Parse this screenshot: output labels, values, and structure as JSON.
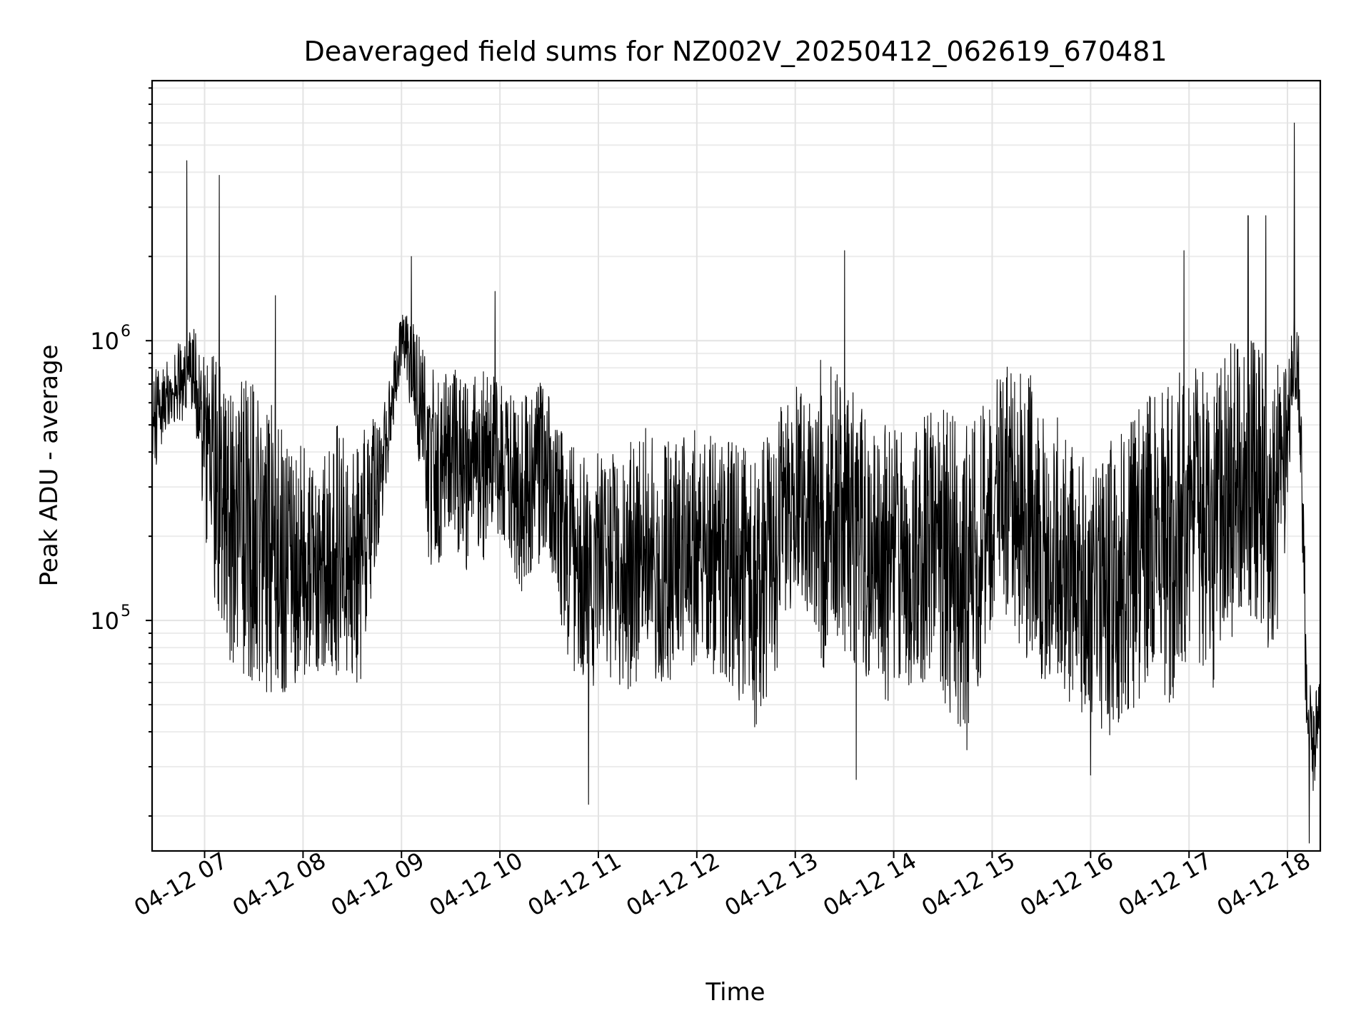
{
  "chart_data": {
    "type": "line",
    "title": "Deaveraged field sums for NZ002V_20250412_062619_670481",
    "xlabel": "Time",
    "ylabel": "Peak ADU - average",
    "x_ticks": [
      "04-12 07",
      "04-12 08",
      "04-12 09",
      "04-12 10",
      "04-12 11",
      "04-12 12",
      "04-12 13",
      "04-12 14",
      "04-12 15",
      "04-12 16",
      "04-12 17",
      "04-12 18"
    ],
    "y_ticks": [
      {
        "label": "10",
        "exp": "5",
        "value": 100000
      },
      {
        "label": "10",
        "exp": "6",
        "value": 1000000
      }
    ],
    "xlim": [
      "2025-04-12 06:28",
      "2025-04-12 18:20"
    ],
    "ylim": [
      15000,
      8500000
    ],
    "y_scale": "log",
    "grid": true,
    "color": "#000000",
    "x_unit": "hour of 2025-04-12",
    "series": [
      {
        "x": [
          6.47,
          6.6,
          6.73,
          6.87,
          7.0,
          7.13,
          7.27,
          7.4,
          7.53,
          7.67,
          7.8,
          7.93,
          8.07,
          8.2,
          8.33,
          8.47,
          8.6,
          8.73,
          8.87,
          9.0,
          9.13,
          9.27,
          9.4,
          9.53,
          9.67,
          9.8,
          9.93,
          10.07,
          10.2,
          10.33,
          10.47,
          10.6,
          10.73,
          10.87,
          11.0,
          11.13,
          11.27,
          11.4,
          11.53,
          11.67,
          11.8,
          11.93,
          12.07,
          12.2,
          12.33,
          12.47,
          12.6,
          12.73,
          12.87,
          13.0,
          13.13,
          13.27,
          13.4,
          13.53,
          13.67,
          13.8,
          13.93,
          14.07,
          14.2,
          14.33,
          14.47,
          14.6,
          14.73,
          14.87,
          15.0,
          15.13,
          15.27,
          15.4,
          15.53,
          15.67,
          15.8,
          15.93,
          16.07,
          16.2,
          16.33,
          16.47,
          16.6,
          16.73,
          16.87,
          17.0,
          17.13,
          17.27,
          17.4,
          17.53,
          17.67,
          17.8,
          17.93,
          18.07,
          18.13,
          18.2,
          18.27,
          18.33
        ],
        "low": [
          300000,
          480000,
          500000,
          560000,
          180000,
          95000,
          70000,
          62000,
          60000,
          52000,
          55000,
          60000,
          62000,
          65000,
          60000,
          58000,
          60000,
          150000,
          330000,
          800000,
          500000,
          150000,
          160000,
          190000,
          140000,
          150000,
          200000,
          180000,
          120000,
          150000,
          160000,
          110000,
          55000,
          60000,
          48000,
          50000,
          55000,
          60000,
          60000,
          55000,
          62000,
          55000,
          65000,
          60000,
          55000,
          45000,
          38000,
          50000,
          75000,
          140000,
          100000,
          60000,
          90000,
          75000,
          65000,
          60000,
          50000,
          55000,
          60000,
          60000,
          55000,
          40000,
          32000,
          60000,
          90000,
          100000,
          80000,
          65000,
          60000,
          60000,
          50000,
          45000,
          40000,
          38000,
          45000,
          50000,
          55000,
          50000,
          50000,
          75000,
          60000,
          45000,
          70000,
          85000,
          100000,
          75000,
          100000,
          650000,
          350000,
          25000,
          22000,
          40000
        ],
        "high": [
          800000,
          820000,
          1000000,
          1200000,
          950000,
          880000,
          750000,
          800000,
          700000,
          600000,
          500000,
          450000,
          400000,
          420000,
          500000,
          480000,
          480000,
          550000,
          700000,
          1300000,
          1200000,
          900000,
          750000,
          800000,
          700000,
          800000,
          750000,
          700000,
          650000,
          700000,
          720000,
          500000,
          450000,
          420000,
          400000,
          400000,
          420000,
          480000,
          500000,
          480000,
          450000,
          480000,
          480000,
          450000,
          450000,
          420000,
          400000,
          480000,
          650000,
          700000,
          600000,
          900000,
          800000,
          700000,
          650000,
          600000,
          550000,
          480000,
          500000,
          550000,
          600000,
          550000,
          500000,
          550000,
          700000,
          850000,
          800000,
          750000,
          650000,
          550000,
          450000,
          400000,
          380000,
          450000,
          500000,
          600000,
          700000,
          650000,
          750000,
          850000,
          800000,
          750000,
          1000000,
          1100000,
          1000000,
          900000,
          800000,
          1250000,
          1100000,
          80000,
          55000,
          60000
        ]
      }
    ],
    "spikes": [
      {
        "x": 6.82,
        "value": 4400000
      },
      {
        "x": 7.15,
        "value": 3900000
      },
      {
        "x": 7.72,
        "value": 1450000
      },
      {
        "x": 9.1,
        "value": 2000000
      },
      {
        "x": 9.95,
        "value": 1500000
      },
      {
        "x": 13.5,
        "value": 2100000
      },
      {
        "x": 16.95,
        "value": 2100000
      },
      {
        "x": 17.6,
        "value": 2800000
      },
      {
        "x": 17.78,
        "value": 2800000
      },
      {
        "x": 18.07,
        "value": 6000000
      },
      {
        "x": 10.9,
        "value": 22000
      },
      {
        "x": 13.62,
        "value": 27000
      },
      {
        "x": 16.0,
        "value": 28000
      },
      {
        "x": 18.22,
        "value": 16000
      }
    ]
  }
}
